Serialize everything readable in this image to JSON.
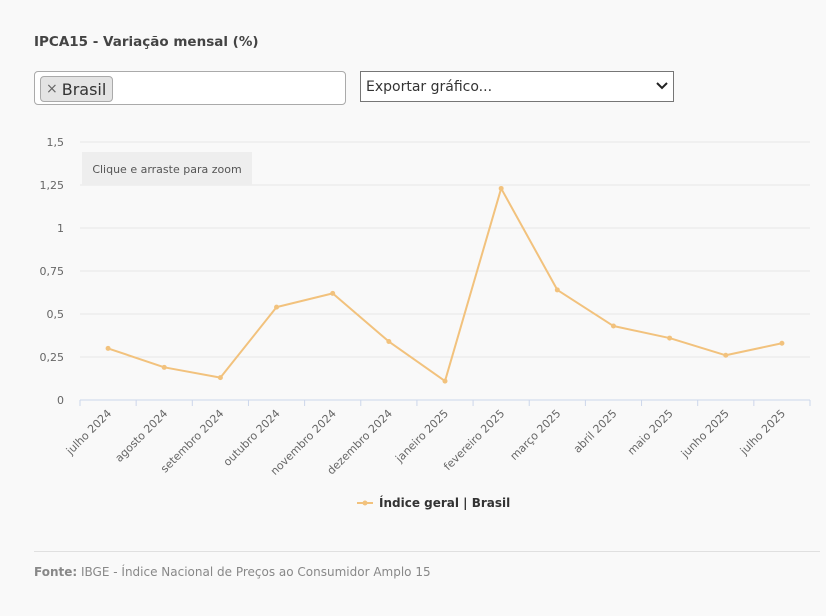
{
  "title": "IPCA15 - Variação mensal (%)",
  "filter": {
    "chips": [
      {
        "label": "Brasil",
        "remove_symbol": "×"
      }
    ]
  },
  "export": {
    "label": "Exportar gráfico..."
  },
  "zoom_hint": "Clique e arraste para zoom",
  "chart_data": {
    "type": "line",
    "title": "",
    "xlabel": "",
    "ylabel": "",
    "ylim": [
      0,
      1.5
    ],
    "yticks": [
      "0",
      "0,25",
      "0,5",
      "0,75",
      "1",
      "1,25",
      "1,5"
    ],
    "grid": true,
    "legend_position": "bottom-center",
    "categories": [
      "julho 2024",
      "agosto 2024",
      "setembro 2024",
      "outubro 2024",
      "novembro 2024",
      "dezembro 2024",
      "janeiro 2025",
      "fevereiro 2025",
      "março 2025",
      "abril 2025",
      "maio 2025",
      "junho 2025",
      "julho 2025"
    ],
    "series": [
      {
        "name": "Índice geral | Brasil",
        "color": "#f2c27d",
        "values": [
          0.3,
          0.19,
          0.13,
          0.54,
          0.62,
          0.34,
          0.11,
          1.23,
          0.64,
          0.43,
          0.36,
          0.26,
          0.33
        ]
      }
    ]
  },
  "source": {
    "label": "Fonte:",
    "text": "IBGE - Índice Nacional de Preços ao Consumidor Amplo 15"
  }
}
